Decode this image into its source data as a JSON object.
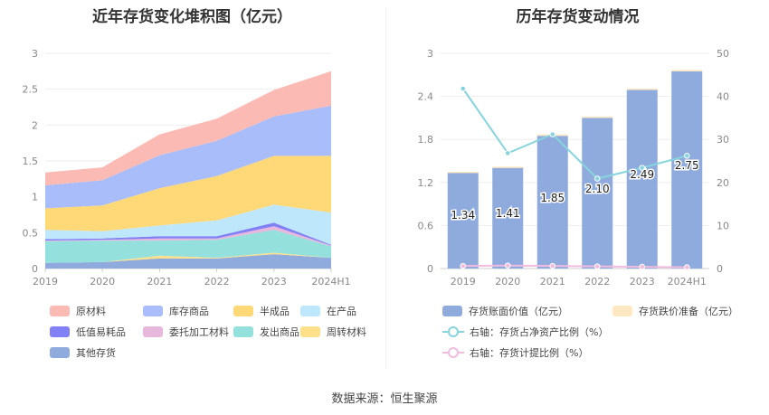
{
  "source": "数据来源：恒生聚源",
  "chart_data": [
    {
      "type": "area",
      "stacked": true,
      "title": "近年存货变化堆积图（亿元）",
      "categories": [
        "2019",
        "2020",
        "2021",
        "2022",
        "2023",
        "2024H1"
      ],
      "ylim": [
        0,
        3
      ],
      "yticks": [
        "0",
        "0.5",
        "1",
        "1.5",
        "2",
        "2.5",
        "3"
      ],
      "series": [
        {
          "name": "其他存货",
          "color": "#8faadc",
          "values": [
            0.08,
            0.09,
            0.14,
            0.14,
            0.2,
            0.15
          ]
        },
        {
          "name": "周转材料",
          "color": "#ffe08a",
          "values": [
            0.0,
            0.0,
            0.04,
            0.01,
            0.02,
            0.0
          ]
        },
        {
          "name": "发出商品",
          "color": "#93e0dc",
          "values": [
            0.3,
            0.3,
            0.21,
            0.25,
            0.32,
            0.16
          ]
        },
        {
          "name": "委托加工材料",
          "color": "#e8b7dc",
          "values": [
            0.01,
            0.01,
            0.03,
            0.02,
            0.05,
            0.01
          ]
        },
        {
          "name": "低值易耗品",
          "color": "#8181f5",
          "values": [
            0.02,
            0.02,
            0.03,
            0.03,
            0.05,
            0.01
          ]
        },
        {
          "name": "在产品",
          "color": "#bfe7fb",
          "values": [
            0.13,
            0.1,
            0.15,
            0.22,
            0.25,
            0.45
          ]
        },
        {
          "name": "半成品",
          "color": "#ffd877",
          "values": [
            0.3,
            0.36,
            0.52,
            0.62,
            0.68,
            0.79
          ]
        },
        {
          "name": "库存商品",
          "color": "#a8bdfa",
          "values": [
            0.32,
            0.35,
            0.46,
            0.49,
            0.55,
            0.7
          ]
        },
        {
          "name": "原材料",
          "color": "#fbbab3",
          "values": [
            0.18,
            0.18,
            0.29,
            0.31,
            0.37,
            0.48
          ]
        }
      ],
      "legend": [
        "原材料",
        "库存商品",
        "半成品",
        "在产品",
        "低值易耗品",
        "委托加工材料",
        "发出商品",
        "周转材料",
        "其他存货"
      ]
    },
    {
      "type": "bar",
      "title": "历年存货变动情况",
      "categories": [
        "2019",
        "2020",
        "2021",
        "2022",
        "2023",
        "2024H1"
      ],
      "ylim_left": [
        0,
        3
      ],
      "yticks_left": [
        "0",
        "0.6",
        "1.2",
        "1.8",
        "2.4",
        "3"
      ],
      "ylim_right": [
        0,
        50
      ],
      "yticks_right": [
        "0",
        "10",
        "20",
        "30",
        "40",
        "50"
      ],
      "series": [
        {
          "name": "存货账面价值（亿元）",
          "axis": "left",
          "color": "#8faadc",
          "values": [
            1.34,
            1.41,
            1.85,
            2.1,
            2.49,
            2.75
          ],
          "labels": [
            "1.34",
            "1.41",
            "1.85",
            "2.10",
            "2.49",
            "2.75"
          ]
        },
        {
          "name": "存货跌价准备（亿元）",
          "axis": "left",
          "color": "#ffe8c2",
          "values": [
            0.01,
            0.01,
            0.02,
            0.02,
            0.02,
            0.02
          ]
        },
        {
          "name": "右轴：存货占净资产比例（%）",
          "axis": "right",
          "type": "line",
          "color": "#86d4dd",
          "values": [
            41.8,
            26.8,
            31.2,
            20.9,
            23.4,
            26.2
          ]
        },
        {
          "name": "右轴：存货计提比例（%）",
          "axis": "right",
          "type": "line",
          "color": "#f1bcdf",
          "values": [
            0.6,
            0.7,
            0.6,
            0.5,
            0.4,
            0.3
          ]
        }
      ]
    }
  ]
}
